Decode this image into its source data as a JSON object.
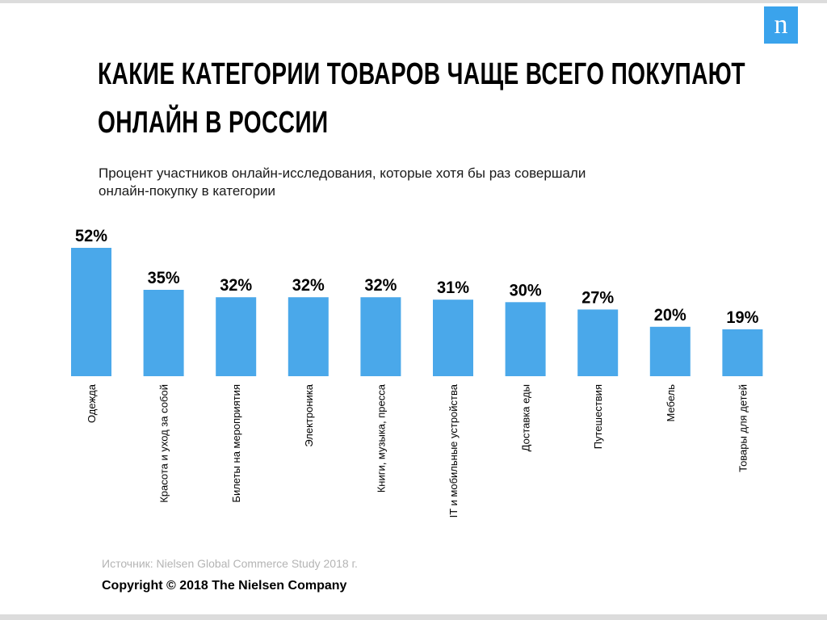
{
  "logo": {
    "letter": "n"
  },
  "header": {
    "title_line1": "КАКИЕ КАТЕГОРИИ ТОВАРОВ ЧАЩЕ ВСЕГО ПОКУПАЮТ",
    "title_line2": "ОНЛАЙН В РОССИИ",
    "subtitle_line1": "Процент участников онлайн-исследования, которые хотя бы раз совершали",
    "subtitle_line2": "онлайн-покупку в категории"
  },
  "footer": {
    "source": "Источник: Nielsen Global Commerce Study 2018 г.",
    "copyright": "Copyright © 2018 The Nielsen Company"
  },
  "colors": {
    "bar": "#4aa8ea",
    "logo": "#3aa3ec",
    "source_text": "#b4b4b4"
  },
  "chart_data": {
    "type": "bar",
    "categories": [
      "Одежда",
      "Красота и уход за собой",
      "Билеты на мероприятия",
      "Электроника",
      "Книги, музыка, пресса",
      "IT и мобильные устройства",
      "Доставка еды",
      "Путешествия",
      "Мебель",
      "Товары для детей"
    ],
    "values": [
      52,
      35,
      32,
      32,
      32,
      31,
      30,
      27,
      20,
      19
    ],
    "value_labels": [
      "52%",
      "35%",
      "32%",
      "32%",
      "32%",
      "31%",
      "30%",
      "27%",
      "20%",
      "19%"
    ],
    "ylim": [
      0,
      52
    ],
    "grid": false,
    "legend": "none"
  }
}
